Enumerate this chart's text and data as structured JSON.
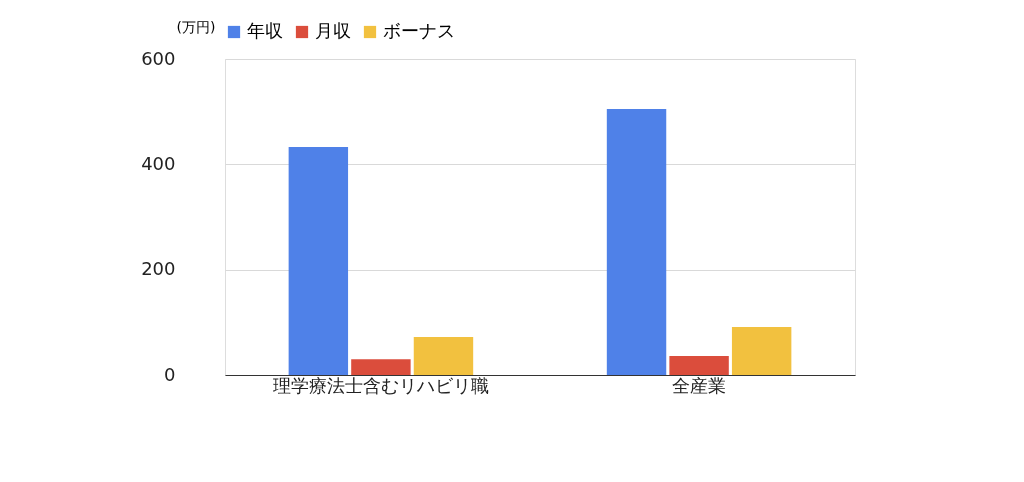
{
  "chart_data": {
    "type": "bar",
    "ylabel": "(万円)",
    "categories": [
      "理学療法士含むリハビリ職",
      "全産業"
    ],
    "series": [
      {
        "name": "年収",
        "color": "#4f81e8",
        "values": [
          433,
          505
        ]
      },
      {
        "name": "月収",
        "color": "#db4d3c",
        "values": [
          30,
          36
        ]
      },
      {
        "name": "ボーナス",
        "color": "#f2c13f",
        "values": [
          72,
          91
        ]
      }
    ],
    "ylim": [
      0,
      600
    ],
    "yticks": [
      0,
      200,
      400,
      600
    ],
    "grid": "y",
    "legend": "top"
  }
}
